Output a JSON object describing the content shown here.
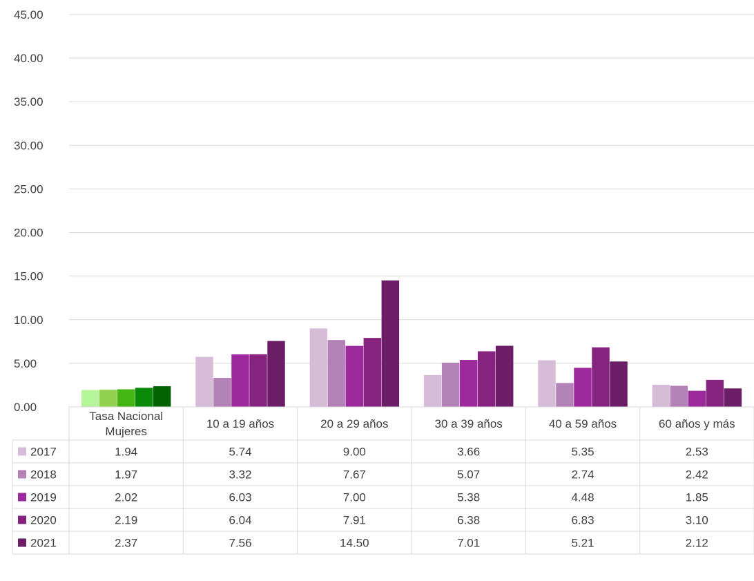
{
  "chart_data": {
    "type": "bar",
    "title": "",
    "xlabel": "",
    "ylabel": "",
    "ylim": [
      0,
      45
    ],
    "yticks": [
      "0.00",
      "5.00",
      "10.00",
      "15.00",
      "20.00",
      "25.00",
      "30.00",
      "35.00",
      "40.00",
      "45.00"
    ],
    "grid": true,
    "legend": "data-table",
    "categories": [
      [
        "Tasa Nacional",
        "Mujeres"
      ],
      [
        "10 a 19 años"
      ],
      [
        "20 a 29 años"
      ],
      [
        "30 a 39 años"
      ],
      [
        "40 a 59 años"
      ],
      [
        "60 años y más"
      ]
    ],
    "series": [
      {
        "name": "2017",
        "color": "#d6bcd6",
        "national_color": "#b6f59a",
        "values": [
          1.94,
          5.74,
          9.0,
          3.66,
          5.35,
          2.53
        ],
        "labels": [
          "1.94",
          "5.74",
          "9.00",
          "3.66",
          "5.35",
          "2.53"
        ]
      },
      {
        "name": "2018",
        "color": "#b382b6",
        "national_color": "#92d050",
        "values": [
          1.97,
          3.32,
          7.67,
          5.07,
          2.74,
          2.42
        ],
        "labels": [
          "1.97",
          "3.32",
          "7.67",
          "5.07",
          "2.74",
          "2.42"
        ]
      },
      {
        "name": "2019",
        "color": "#9d2a9d",
        "national_color": "#45b514",
        "values": [
          2.02,
          6.03,
          7.0,
          5.38,
          4.48,
          1.85
        ],
        "labels": [
          "2.02",
          "6.03",
          "7.00",
          "5.38",
          "4.48",
          "1.85"
        ]
      },
      {
        "name": "2020",
        "color": "#86237e",
        "national_color": "#088a08",
        "values": [
          2.19,
          6.04,
          7.91,
          6.38,
          6.83,
          3.1
        ],
        "labels": [
          "2.19",
          "6.04",
          "7.91",
          "6.38",
          "6.83",
          "3.10"
        ]
      },
      {
        "name": "2021",
        "color": "#6b1e66",
        "national_color": "#026302",
        "values": [
          2.37,
          7.56,
          14.5,
          7.01,
          5.21,
          2.12
        ],
        "labels": [
          "2.37",
          "7.56",
          "14.50",
          "7.01",
          "5.21",
          "2.12"
        ]
      }
    ]
  }
}
